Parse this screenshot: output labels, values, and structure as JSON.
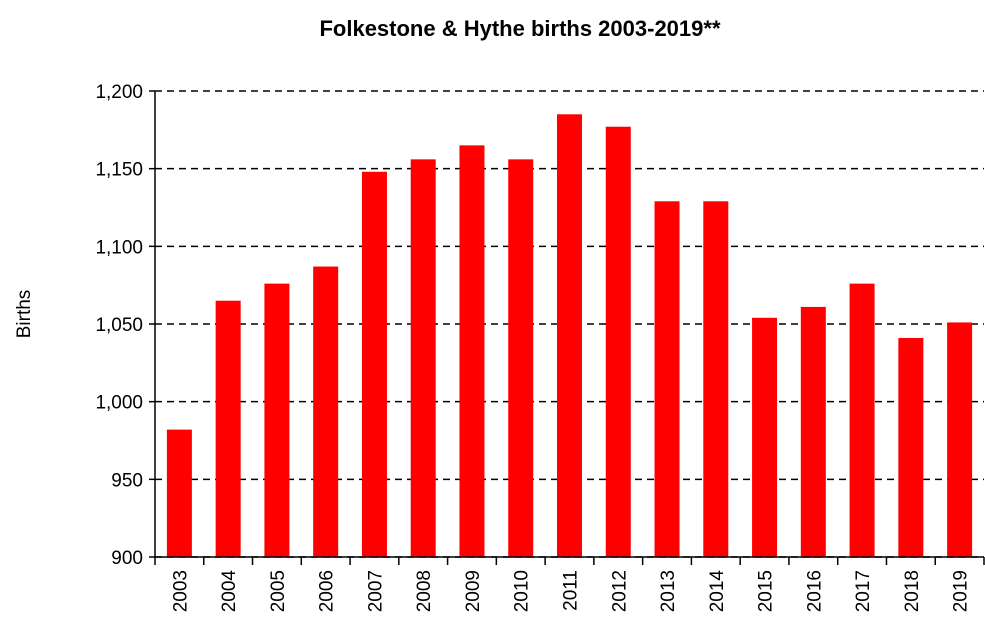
{
  "chart_data": {
    "type": "bar",
    "title": "Folkestone & Hythe births 2003-2019**",
    "y_label": "Births",
    "categories": [
      "2003",
      "2004",
      "2005",
      "2006",
      "2007",
      "2008",
      "2009",
      "2010",
      "2011",
      "2012",
      "2013",
      "2014",
      "2015",
      "2016",
      "2017",
      "2018",
      "2019"
    ],
    "values": [
      982,
      1065,
      1076,
      1087,
      1148,
      1156,
      1165,
      1156,
      1185,
      1177,
      1129,
      1129,
      1054,
      1061,
      1076,
      1041,
      1051
    ],
    "color": "#ff0000",
    "ylim": [
      900,
      1200
    ],
    "yticks": [
      900,
      950,
      {
        "value": 1000,
        "label": "1,000"
      },
      {
        "value": 1050,
        "label": "1,050"
      },
      {
        "value": 1100,
        "label": "1,100"
      },
      {
        "value": 1150,
        "label": "1,150"
      },
      {
        "value": 1200,
        "label": "1,200"
      }
    ],
    "grid": true
  }
}
